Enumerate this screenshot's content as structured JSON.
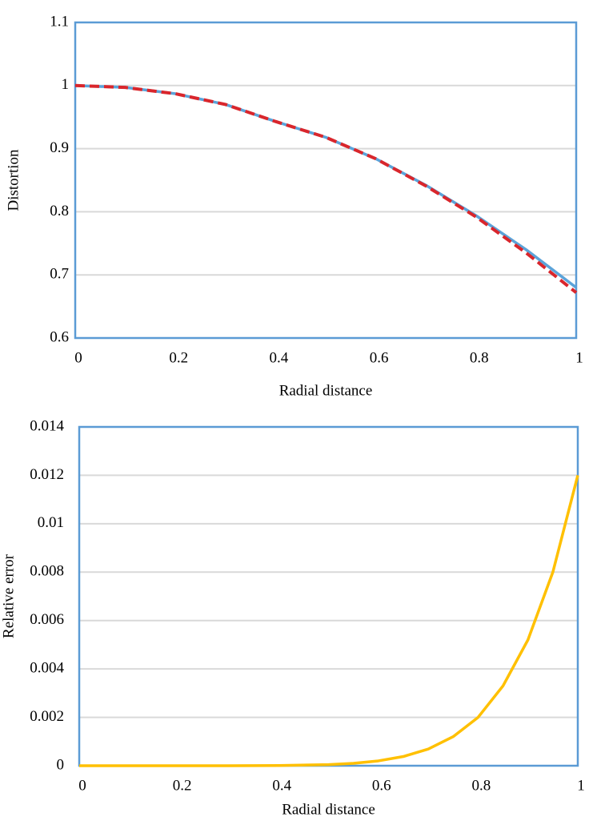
{
  "chart_data": [
    {
      "type": "line",
      "x": [
        0,
        0.1,
        0.2,
        0.3,
        0.4,
        0.5,
        0.6,
        0.7,
        0.8,
        0.9,
        1
      ],
      "series": [
        {
          "color": "#5ba3d9",
          "dash": false,
          "values": [
            1,
            0.997,
            0.987,
            0.97,
            0.943,
            0.918,
            0.884,
            0.842,
            0.794,
            0.74,
            0.68
          ]
        },
        {
          "color": "#d9262c",
          "dash": true,
          "values": [
            1,
            0.997,
            0.987,
            0.97,
            0.943,
            0.918,
            0.884,
            0.841,
            0.792,
            0.735,
            0.672
          ]
        }
      ],
      "xlabel": "Radial distance",
      "ylabel": "Distortion",
      "xlim": [
        0,
        1
      ],
      "xticks": [
        0,
        0.2,
        0.4,
        0.6,
        0.8,
        1
      ],
      "ylim": [
        0.6,
        1.1
      ],
      "yticks": [
        0.6,
        0.7,
        0.8,
        0.9,
        1,
        1.1
      ],
      "grid": true
    },
    {
      "type": "line",
      "x": [
        0,
        0.1,
        0.2,
        0.3,
        0.4,
        0.5,
        0.55,
        0.6,
        0.65,
        0.7,
        0.75,
        0.8,
        0.85,
        0.9,
        0.95,
        1
      ],
      "series": [
        {
          "color": "#ffc000",
          "dash": false,
          "values": [
            0,
            0,
            0,
            0,
            8e-06,
            4.7e-05,
            0.0001,
            0.0002,
            0.00038,
            0.00069,
            0.0012,
            0.002,
            0.0033,
            0.0052,
            0.008,
            0.012
          ]
        }
      ],
      "xlabel": "Radial distance",
      "ylabel": "Relative error",
      "xlim": [
        0,
        1
      ],
      "xticks": [
        0,
        0.2,
        0.4,
        0.6,
        0.8,
        1
      ],
      "ylim": [
        0,
        0.014
      ],
      "yticks": [
        0,
        0.002,
        0.004,
        0.006,
        0.008,
        0.01,
        0.012,
        0.014
      ],
      "grid": true
    }
  ]
}
